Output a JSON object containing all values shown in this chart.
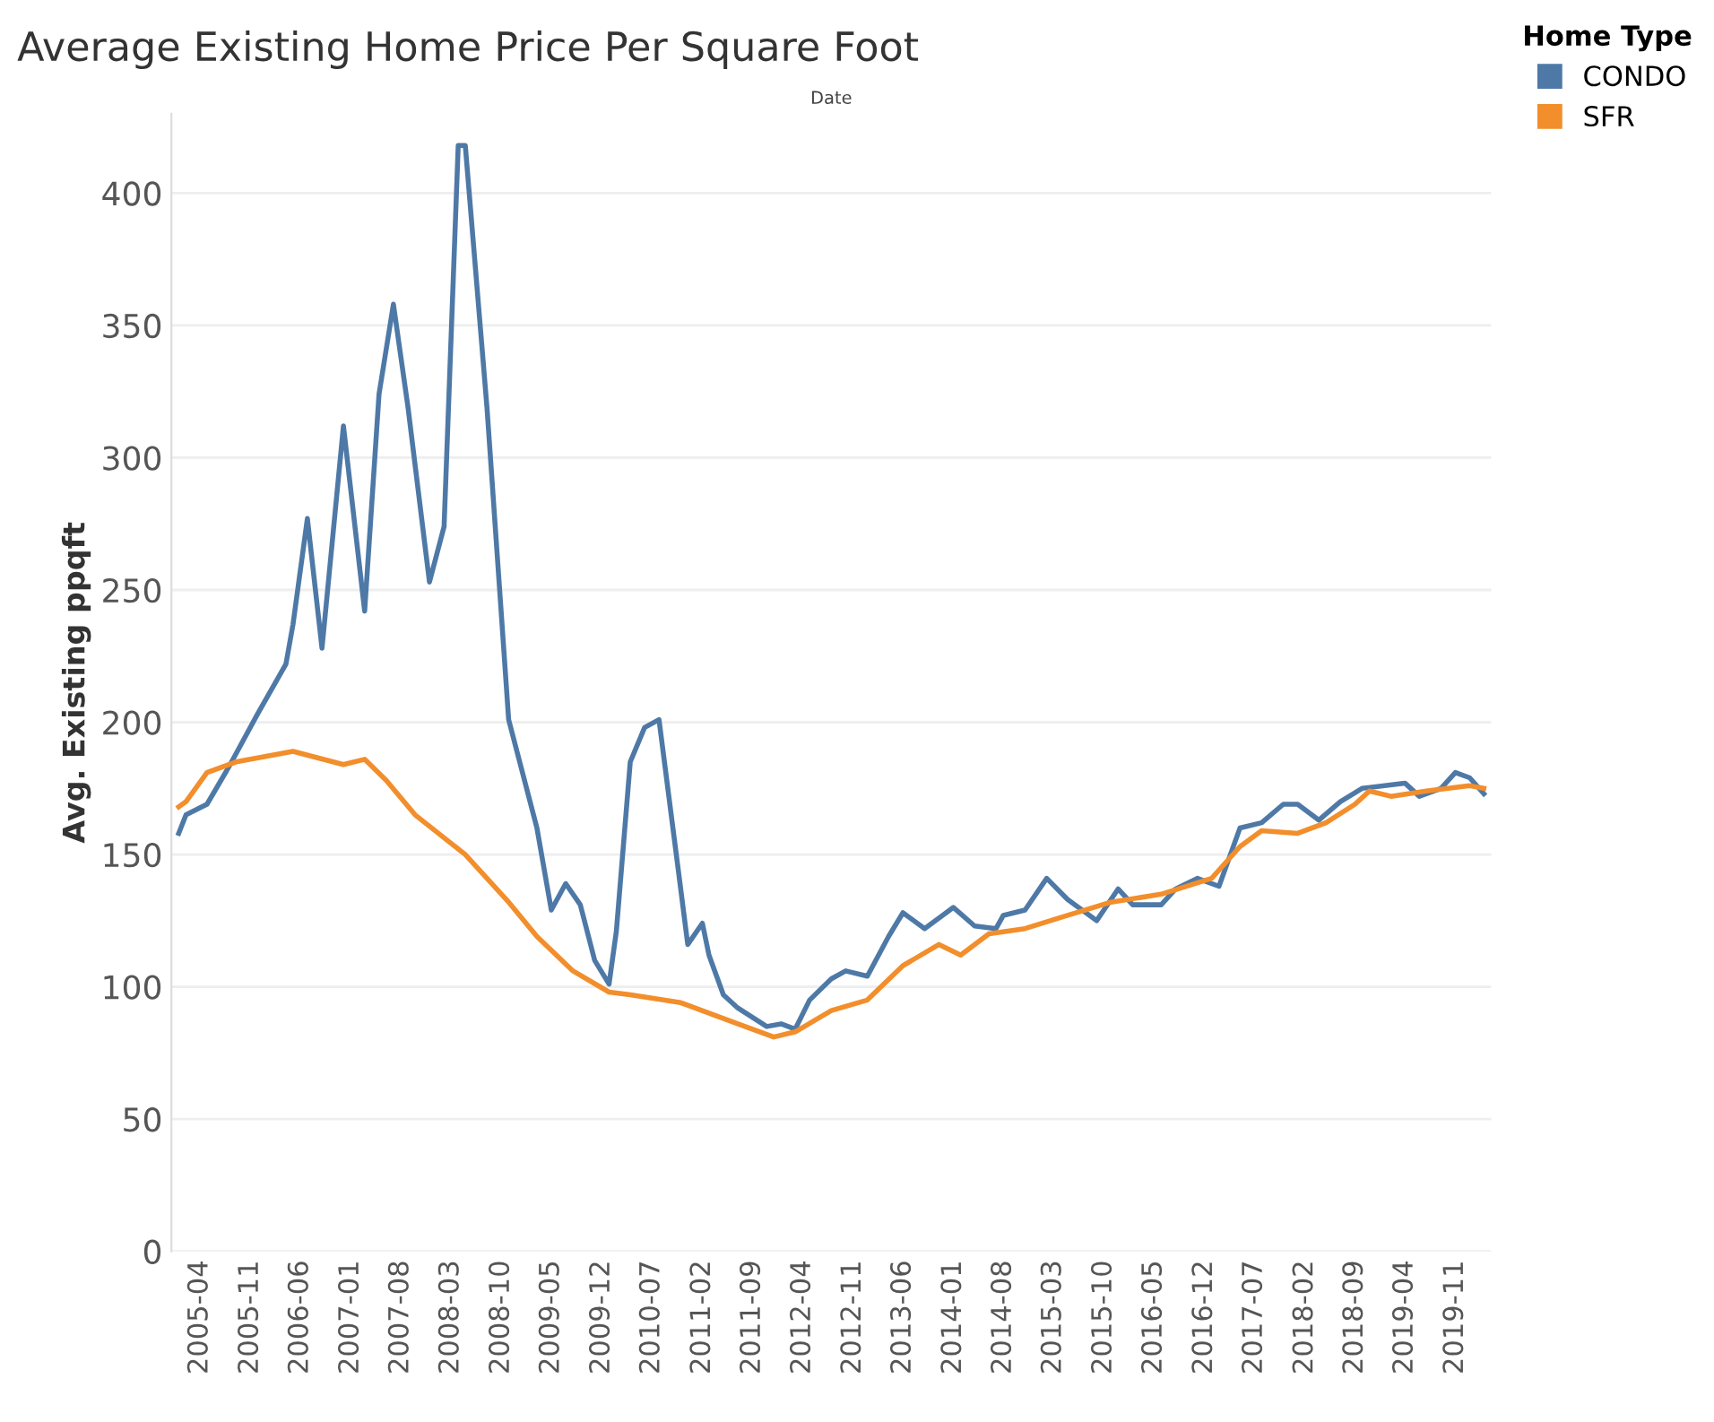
{
  "chart_data": {
    "type": "line",
    "title": "Average Existing Home Price Per Square Foot",
    "xlabel": "Date",
    "ylabel": "Avg. Existing ppqft",
    "legend_title": "Home Type",
    "legend": "right",
    "grid": "y",
    "marker": "none",
    "line_style": "solid",
    "xlim": [
      "2004-12",
      "2020-04"
    ],
    "ylim": [
      0,
      430
    ],
    "yticks": [
      0,
      50,
      100,
      150,
      200,
      250,
      300,
      350,
      400
    ],
    "xticks": [
      {
        "value": "2005-04",
        "label": "2005-04"
      },
      {
        "value": "2005-11",
        "label": "2005-11"
      },
      {
        "value": "2006-06",
        "label": "2006-06"
      },
      {
        "value": "2007-01",
        "label": "2007-01"
      },
      {
        "value": "2007-08",
        "label": "2007-08"
      },
      {
        "value": "2008-03",
        "label": "2008-03"
      },
      {
        "value": "2008-10",
        "label": "2008-10"
      },
      {
        "value": "2009-05",
        "label": "2009-05"
      },
      {
        "value": "2009-12",
        "label": "2009-12"
      },
      {
        "value": "2010-07",
        "label": "2010-07"
      },
      {
        "value": "2011-02",
        "label": "2011-02"
      },
      {
        "value": "2011-09",
        "label": "2011-09"
      },
      {
        "value": "2012-04",
        "label": "2012-04"
      },
      {
        "value": "2012-11",
        "label": "2012-11"
      },
      {
        "value": "2013-06",
        "label": "2013-06"
      },
      {
        "value": "2014-01",
        "label": "2014-01"
      },
      {
        "value": "2014-08",
        "label": "2014-08"
      },
      {
        "value": "2015-03",
        "label": "2015-03"
      },
      {
        "value": "2015-10",
        "label": "2015-10"
      },
      {
        "value": "2016-05",
        "label": "2016-05"
      },
      {
        "value": "2016-12",
        "label": "2016-12"
      },
      {
        "value": "2017-07",
        "label": "2017-07"
      },
      {
        "value": "2018-02",
        "label": "2018-02"
      },
      {
        "value": "2018-09",
        "label": "2018-09"
      },
      {
        "value": "2019-04",
        "label": "2019-04"
      },
      {
        "value": "2019-11",
        "label": "2019-11"
      }
    ],
    "series": [
      {
        "name": "CONDO",
        "color": "#4e79a7",
        "x": [
          "2005-01",
          "2005-02",
          "2005-05",
          "2005-08",
          "2005-12",
          "2006-04",
          "2006-05",
          "2006-07",
          "2006-09",
          "2006-12",
          "2007-03",
          "2007-05",
          "2007-07",
          "2007-09",
          "2007-12",
          "2008-02",
          "2008-04",
          "2008-05",
          "2008-08",
          "2008-11",
          "2009-03",
          "2009-05",
          "2009-07",
          "2009-09",
          "2009-11",
          "2010-01",
          "2010-02",
          "2010-04",
          "2010-06",
          "2010-08",
          "2010-11",
          "2010-12",
          "2011-02",
          "2011-03",
          "2011-05",
          "2011-07",
          "2011-11",
          "2012-01",
          "2012-03",
          "2012-05",
          "2012-08",
          "2012-10",
          "2013-01",
          "2013-04",
          "2013-06",
          "2013-09",
          "2014-01",
          "2014-04",
          "2014-07",
          "2014-08",
          "2014-11",
          "2015-02",
          "2015-05",
          "2015-09",
          "2015-12",
          "2016-02",
          "2016-06",
          "2016-08",
          "2016-11",
          "2017-02",
          "2017-05",
          "2017-08",
          "2017-11",
          "2018-01",
          "2018-04",
          "2018-07",
          "2018-10",
          "2019-04",
          "2019-06",
          "2019-09",
          "2019-11",
          "2020-01",
          "2020-03"
        ],
        "values": [
          158,
          165,
          169,
          183,
          203,
          222,
          237,
          277,
          228,
          312,
          242,
          324,
          358,
          319,
          253,
          274,
          418,
          418,
          319,
          201,
          160,
          129,
          139,
          131,
          110,
          101,
          121,
          185,
          198,
          201,
          137,
          116,
          124,
          112,
          97,
          92,
          85,
          86,
          84,
          95,
          103,
          106,
          104,
          119,
          128,
          122,
          130,
          123,
          122,
          127,
          129,
          141,
          133,
          125,
          137,
          131,
          131,
          137,
          141,
          138,
          160,
          162,
          169,
          169,
          163,
          170,
          175,
          177,
          172,
          175,
          181,
          179,
          173
        ]
      },
      {
        "name": "SFR",
        "color": "#f28e2b",
        "x": [
          "2005-01",
          "2005-02",
          "2005-05",
          "2005-09",
          "2006-05",
          "2006-12",
          "2007-03",
          "2007-06",
          "2007-10",
          "2008-05",
          "2008-11",
          "2009-03",
          "2009-08",
          "2010-01",
          "2010-04",
          "2010-11",
          "2011-07",
          "2011-12",
          "2012-03",
          "2012-08",
          "2013-01",
          "2013-06",
          "2013-11",
          "2014-02",
          "2014-06",
          "2014-11",
          "2015-05",
          "2015-11",
          "2016-06",
          "2017-01",
          "2017-05",
          "2017-08",
          "2018-01",
          "2018-05",
          "2018-09",
          "2018-11",
          "2019-02",
          "2019-07",
          "2020-01",
          "2020-03"
        ],
        "values": [
          168,
          170,
          181,
          185,
          189,
          184,
          186,
          178,
          165,
          150,
          132,
          119,
          106,
          98,
          97,
          94,
          86,
          81,
          83,
          91,
          95,
          108,
          116,
          112,
          120,
          122,
          127,
          132,
          135,
          141,
          153,
          159,
          158,
          162,
          169,
          174,
          172,
          174,
          176,
          175
        ]
      }
    ]
  }
}
